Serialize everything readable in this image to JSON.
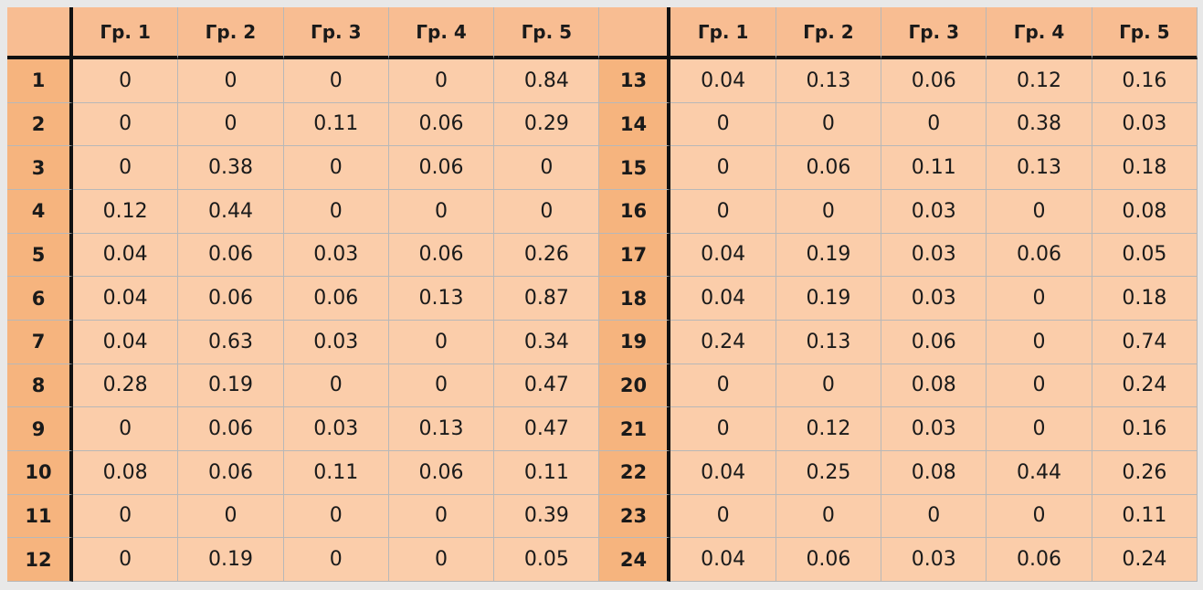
{
  "table": {
    "left_headers": [
      "",
      "Гр. 1",
      "Гр. 2",
      "Гр. 3",
      "Гр. 4",
      "Гр. 5"
    ],
    "right_headers": [
      "",
      "Гр. 1",
      "Гр. 2",
      "Гр. 3",
      "Гр. 4",
      "Гр. 5"
    ],
    "rows": [
      {
        "left_label": "1",
        "left": [
          "0",
          "0",
          "0",
          "0",
          "0.84"
        ],
        "right_label": "13",
        "right": [
          "0.04",
          "0.13",
          "0.06",
          "0.12",
          "0.16"
        ]
      },
      {
        "left_label": "2",
        "left": [
          "0",
          "0",
          "0.11",
          "0.06",
          "0.29"
        ],
        "right_label": "14",
        "right": [
          "0",
          "0",
          "0",
          "0.38",
          "0.03"
        ]
      },
      {
        "left_label": "3",
        "left": [
          "0",
          "0.38",
          "0",
          "0.06",
          "0"
        ],
        "right_label": "15",
        "right": [
          "0",
          "0.06",
          "0.11",
          "0.13",
          "0.18"
        ]
      },
      {
        "left_label": "4",
        "left": [
          "0.12",
          "0.44",
          "0",
          "0",
          "0"
        ],
        "right_label": "16",
        "right": [
          "0",
          "0",
          "0.03",
          "0",
          "0.08"
        ]
      },
      {
        "left_label": "5",
        "left": [
          "0.04",
          "0.06",
          "0.03",
          "0.06",
          "0.26"
        ],
        "right_label": "17",
        "right": [
          "0.04",
          "0.19",
          "0.03",
          "0.06",
          "0.05"
        ]
      },
      {
        "left_label": "6",
        "left": [
          "0.04",
          "0.06",
          "0.06",
          "0.13",
          "0.87"
        ],
        "right_label": "18",
        "right": [
          "0.04",
          "0.19",
          "0.03",
          "0",
          "0.18"
        ]
      },
      {
        "left_label": "7",
        "left": [
          "0.04",
          "0.63",
          "0.03",
          "0",
          "0.34"
        ],
        "right_label": "19",
        "right": [
          "0.24",
          "0.13",
          "0.06",
          "0",
          "0.74"
        ]
      },
      {
        "left_label": "8",
        "left": [
          "0.28",
          "0.19",
          "0",
          "0",
          "0.47"
        ],
        "right_label": "20",
        "right": [
          "0",
          "0",
          "0.08",
          "0",
          "0.24"
        ]
      },
      {
        "left_label": "9",
        "left": [
          "0",
          "0.06",
          "0.03",
          "0.13",
          "0.47"
        ],
        "right_label": "21",
        "right": [
          "0",
          "0.12",
          "0.03",
          "0",
          "0.16"
        ]
      },
      {
        "left_label": "10",
        "left": [
          "0.08",
          "0.06",
          "0.11",
          "0.06",
          "0.11"
        ],
        "right_label": "22",
        "right": [
          "0.04",
          "0.25",
          "0.08",
          "0.44",
          "0.26"
        ]
      },
      {
        "left_label": "11",
        "left": [
          "0",
          "0",
          "0",
          "0",
          "0.39"
        ],
        "right_label": "23",
        "right": [
          "0",
          "0",
          "0",
          "0",
          "0.11"
        ]
      },
      {
        "left_label": "12",
        "left": [
          "0",
          "0.19",
          "0",
          "0",
          "0.05"
        ],
        "right_label": "24",
        "right": [
          "0.04",
          "0.06",
          "0.03",
          "0.06",
          "0.24"
        ]
      }
    ]
  },
  "colors": {
    "header_bg": "#f8bd92",
    "label_bg": "#f6b47e",
    "cell_bg": "#fbcdaa",
    "rule": "#111111"
  }
}
